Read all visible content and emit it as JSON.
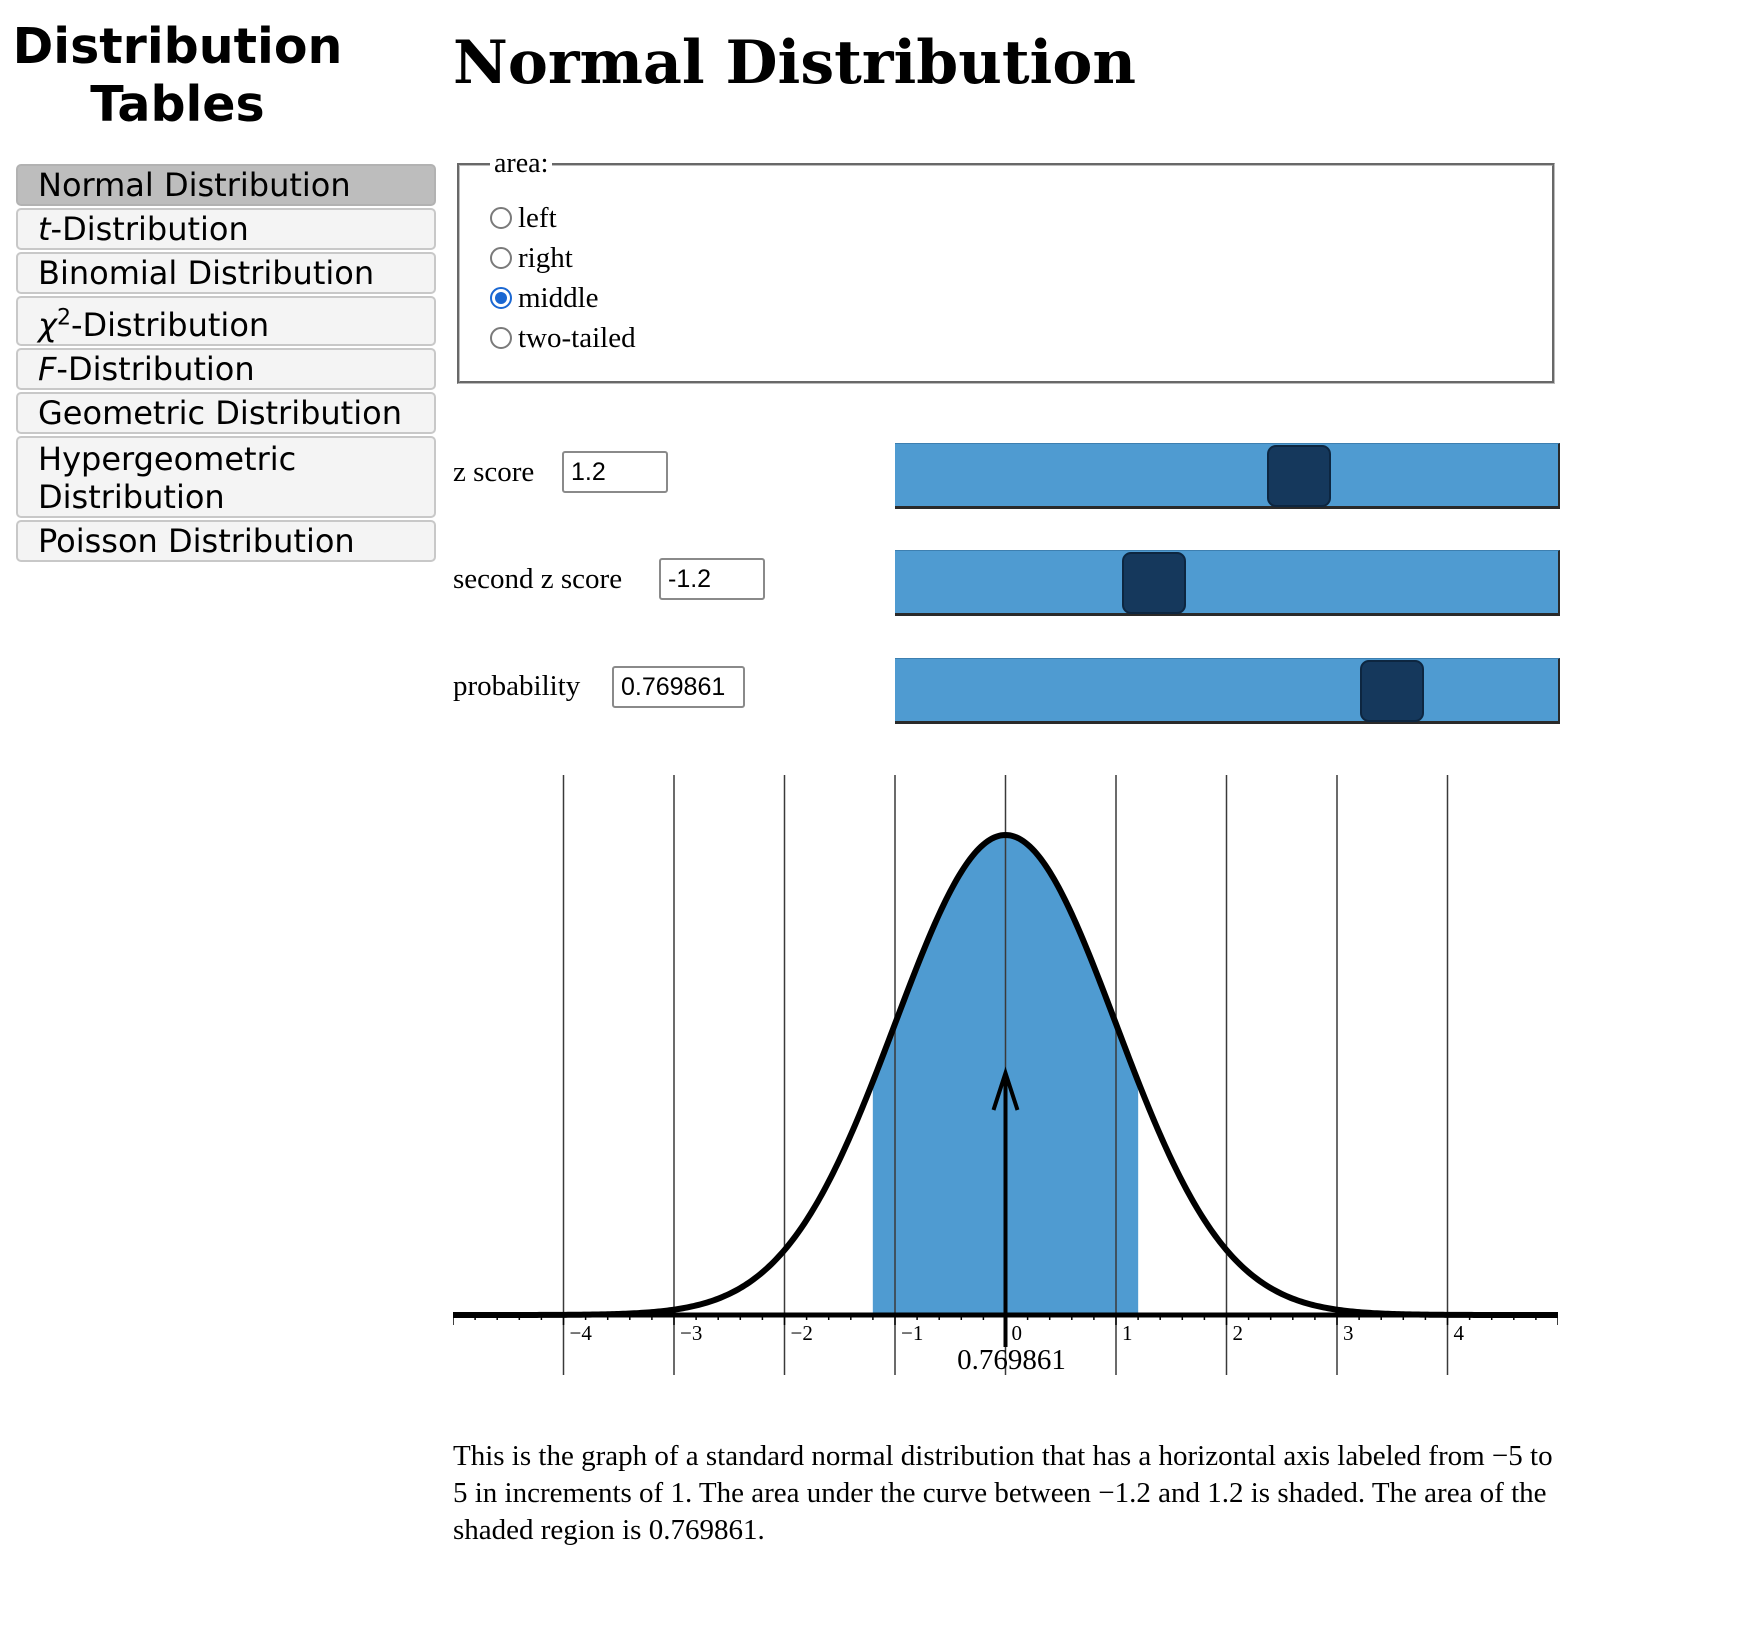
{
  "sidebar": {
    "title_line1": "Distribution",
    "title_line2": "Tables",
    "items": [
      {
        "label": "Normal Distribution",
        "active": true
      },
      {
        "italic": "t",
        "label": "-Distribution"
      },
      {
        "label": "Binomial Distribution"
      },
      {
        "italic": "χ",
        "sup": "2",
        "label": "-Distribution"
      },
      {
        "italic": "F",
        "label": "-Distribution"
      },
      {
        "label": "Geometric Distribution"
      },
      {
        "label": "Hypergeometric Distribution"
      },
      {
        "label": "Poisson Distribution"
      }
    ]
  },
  "page_title": "Normal Distribution",
  "area": {
    "legend": "area:",
    "options": [
      "left",
      "right",
      "middle",
      "two-tailed"
    ],
    "selected": "middle"
  },
  "controls": {
    "z_score": {
      "label": "z score",
      "value": "1.2"
    },
    "second_z_score": {
      "label": "second z score",
      "value": "-1.2"
    },
    "probability": {
      "label": "probability",
      "value": "0.769861"
    }
  },
  "sliders": {
    "z_score_fraction": 0.61,
    "second_z_score_fraction": 0.39,
    "probability_fraction": 0.75
  },
  "chart_data": {
    "type": "area",
    "distribution": "standard normal",
    "xlim": [
      -5,
      5
    ],
    "x_ticks": [
      "−4",
      "−3",
      "−2",
      "−1",
      "0",
      "1",
      "2",
      "3",
      "4"
    ],
    "tick_values": [
      -4,
      -3,
      -2,
      -1,
      0,
      1,
      2,
      3,
      4
    ],
    "shaded_from": -1.2,
    "shaded_to": 1.2,
    "area_label": "0.769861",
    "grid": true,
    "colors": {
      "fill": "#4f9bd1",
      "curve": "#000000",
      "grid": "#3a3a3a"
    }
  },
  "description": "This is the graph of a standard normal distribution that has a horizontal axis labeled from −5 to 5 in increments of 1. The area under the curve between −1.2 and 1.2 is shaded. The area of the shaded region is 0.769861."
}
